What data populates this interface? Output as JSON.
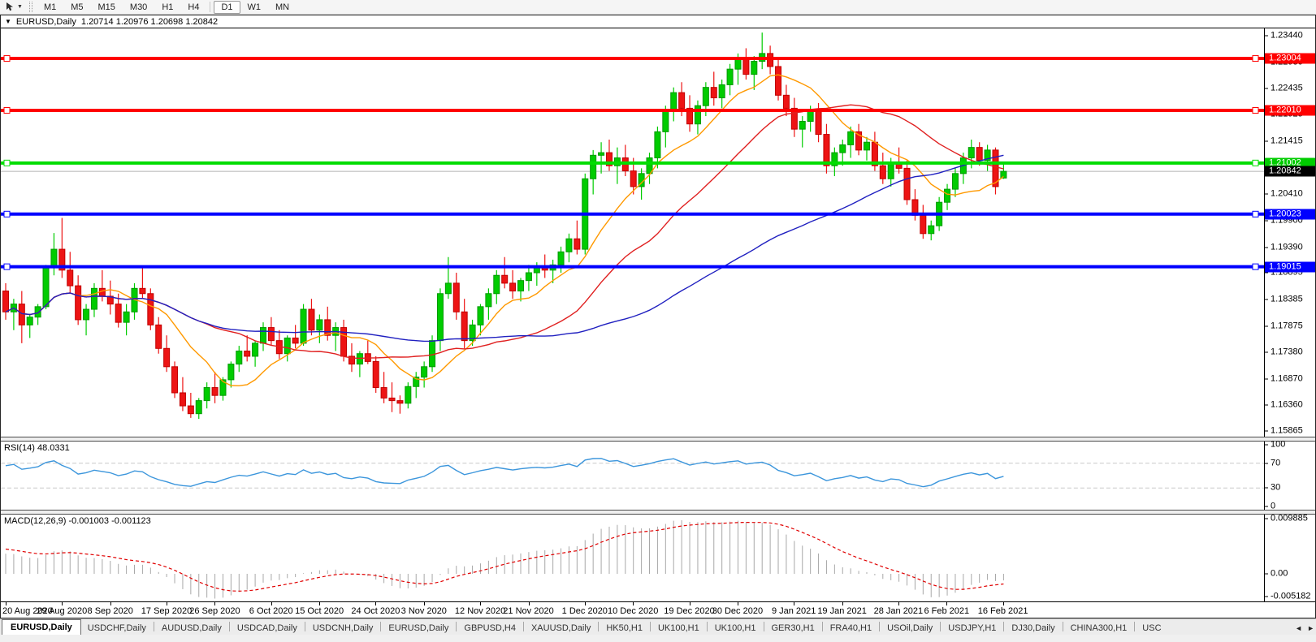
{
  "toolbar": {
    "timeframes": [
      "M1",
      "M5",
      "M15",
      "M30",
      "H1",
      "H4",
      "D1",
      "W1",
      "MN"
    ],
    "active_timeframe": "D1"
  },
  "chart": {
    "title": "EURUSD,Daily",
    "ohlc_display": "1.20714 1.20976 1.20698 1.20842"
  },
  "chart_data": {
    "type": "candlestick",
    "symbol": "EURUSD",
    "timeframe": "Daily",
    "grid": false,
    "price_axis": {
      "range_top": 1.2358,
      "range_bottom": 1.1576,
      "ticks": [
        "1.23440",
        "1.22930",
        "1.22435",
        "1.21925",
        "1.21415",
        "1.20410",
        "1.19900",
        "1.19390",
        "1.18895",
        "1.18385",
        "1.17875",
        "1.17380",
        "1.16870",
        "1.16360",
        "1.15865"
      ]
    },
    "date_ticks": {
      "labels": [
        "20 Aug 2020",
        "29 Aug 2020",
        "8 Sep 2020",
        "17 Sep 2020",
        "26 Sep 2020",
        "6 Oct 2020",
        "15 Oct 2020",
        "24 Oct 2020",
        "3 Nov 2020",
        "12 Nov 2020",
        "21 Nov 2020",
        "1 Dec 2020",
        "10 Dec 2020",
        "19 Dec 2020",
        "30 Dec 2020",
        "9 Jan 2021",
        "19 Jan 2021",
        "28 Jan 2021",
        "6 Feb 2021",
        "16 Feb 2021"
      ],
      "indices": [
        0,
        7,
        13,
        20,
        26,
        33,
        39,
        46,
        52,
        59,
        65,
        72,
        78,
        85,
        91,
        98,
        104,
        111,
        117,
        124
      ]
    },
    "candles": [
      [
        1.1855,
        1.187,
        1.18,
        1.1815
      ],
      [
        1.1815,
        1.184,
        1.178,
        1.183
      ],
      [
        1.183,
        1.1855,
        1.1755,
        1.179
      ],
      [
        1.179,
        1.181,
        1.1765,
        1.1805
      ],
      [
        1.1805,
        1.183,
        1.179,
        1.1825
      ],
      [
        1.1825,
        1.1905,
        1.182,
        1.19
      ],
      [
        1.19,
        1.1966,
        1.1885,
        1.1935
      ],
      [
        1.1935,
        1.1995,
        1.188,
        1.1895
      ],
      [
        1.1895,
        1.193,
        1.185,
        1.1865
      ],
      [
        1.1865,
        1.1885,
        1.179,
        1.18
      ],
      [
        1.18,
        1.183,
        1.177,
        1.182
      ],
      [
        1.182,
        1.187,
        1.1805,
        1.186
      ],
      [
        1.186,
        1.1895,
        1.1835,
        1.1845
      ],
      [
        1.1845,
        1.1875,
        1.181,
        1.183
      ],
      [
        1.183,
        1.185,
        1.1785,
        1.1795
      ],
      [
        1.1795,
        1.183,
        1.177,
        1.1815
      ],
      [
        1.1815,
        1.187,
        1.18,
        1.186
      ],
      [
        1.186,
        1.19,
        1.184,
        1.185
      ],
      [
        1.185,
        1.186,
        1.178,
        1.179
      ],
      [
        1.179,
        1.1805,
        1.1735,
        1.1745
      ],
      [
        1.1745,
        1.177,
        1.17,
        1.171
      ],
      [
        1.171,
        1.172,
        1.165,
        1.166
      ],
      [
        1.166,
        1.169,
        1.1625,
        1.1635
      ],
      [
        1.1635,
        1.166,
        1.1612,
        1.162
      ],
      [
        1.162,
        1.165,
        1.161,
        1.1645
      ],
      [
        1.1645,
        1.168,
        1.163,
        1.167
      ],
      [
        1.167,
        1.17,
        1.164,
        1.1655
      ],
      [
        1.1655,
        1.169,
        1.1645,
        1.1685
      ],
      [
        1.1685,
        1.172,
        1.167,
        1.1715
      ],
      [
        1.1715,
        1.175,
        1.17,
        1.174
      ],
      [
        1.174,
        1.177,
        1.172,
        1.173
      ],
      [
        1.173,
        1.176,
        1.171,
        1.1755
      ],
      [
        1.1755,
        1.1795,
        1.174,
        1.1785
      ],
      [
        1.1785,
        1.1805,
        1.175,
        1.176
      ],
      [
        1.176,
        1.178,
        1.1725,
        1.1735
      ],
      [
        1.1735,
        1.177,
        1.172,
        1.1765
      ],
      [
        1.1765,
        1.179,
        1.1745,
        1.1755
      ],
      [
        1.1755,
        1.183,
        1.175,
        1.182
      ],
      [
        1.182,
        1.184,
        1.177,
        1.178
      ],
      [
        1.178,
        1.181,
        1.1755,
        1.18
      ],
      [
        1.18,
        1.1825,
        1.176,
        1.177
      ],
      [
        1.177,
        1.1795,
        1.174,
        1.1785
      ],
      [
        1.1785,
        1.18,
        1.172,
        1.173
      ],
      [
        1.173,
        1.1755,
        1.17,
        1.1715
      ],
      [
        1.1715,
        1.174,
        1.169,
        1.1735
      ],
      [
        1.1735,
        1.176,
        1.1715,
        1.172
      ],
      [
        1.172,
        1.173,
        1.166,
        1.167
      ],
      [
        1.167,
        1.17,
        1.164,
        1.165
      ],
      [
        1.165,
        1.168,
        1.1623,
        1.1645
      ],
      [
        1.1645,
        1.1655,
        1.162,
        1.164
      ],
      [
        1.164,
        1.168,
        1.163,
        1.1672
      ],
      [
        1.1672,
        1.17,
        1.165,
        1.169
      ],
      [
        1.169,
        1.172,
        1.167,
        1.171
      ],
      [
        1.171,
        1.177,
        1.17,
        1.176
      ],
      [
        1.176,
        1.186,
        1.174,
        1.185
      ],
      [
        1.185,
        1.192,
        1.184,
        1.187
      ],
      [
        1.187,
        1.189,
        1.18,
        1.1815
      ],
      [
        1.1815,
        1.184,
        1.1745,
        1.176
      ],
      [
        1.176,
        1.18,
        1.175,
        1.179
      ],
      [
        1.179,
        1.183,
        1.177,
        1.1825
      ],
      [
        1.1825,
        1.186,
        1.18,
        1.185
      ],
      [
        1.185,
        1.1895,
        1.183,
        1.1885
      ],
      [
        1.1885,
        1.192,
        1.186,
        1.187
      ],
      [
        1.187,
        1.1895,
        1.184,
        1.1855
      ],
      [
        1.1855,
        1.188,
        1.1835,
        1.1875
      ],
      [
        1.1875,
        1.1905,
        1.1855,
        1.189
      ],
      [
        1.189,
        1.191,
        1.1865,
        1.19
      ],
      [
        1.19,
        1.1925,
        1.188,
        1.1895
      ],
      [
        1.1895,
        1.1915,
        1.187,
        1.1905
      ],
      [
        1.1905,
        1.194,
        1.189,
        1.193
      ],
      [
        1.193,
        1.1965,
        1.191,
        1.1955
      ],
      [
        1.1955,
        1.199,
        1.1925,
        1.1935
      ],
      [
        1.1935,
        1.208,
        1.1925,
        1.207
      ],
      [
        1.207,
        1.2125,
        1.204,
        1.2115
      ],
      [
        1.2115,
        1.214,
        1.208,
        1.212
      ],
      [
        1.212,
        1.2145,
        1.2085,
        1.2095
      ],
      [
        1.2095,
        1.213,
        1.206,
        1.211
      ],
      [
        1.211,
        1.2135,
        1.2075,
        1.2085
      ],
      [
        1.2085,
        1.211,
        1.204,
        1.2055
      ],
      [
        1.2055,
        1.209,
        1.203,
        1.208
      ],
      [
        1.208,
        1.212,
        1.206,
        1.211
      ],
      [
        1.211,
        1.217,
        1.209,
        1.216
      ],
      [
        1.216,
        1.221,
        1.213,
        1.22
      ],
      [
        1.22,
        1.2245,
        1.218,
        1.2235
      ],
      [
        1.2235,
        1.2255,
        1.219,
        1.2205
      ],
      [
        1.2205,
        1.223,
        1.216,
        1.2175
      ],
      [
        1.2175,
        1.222,
        1.2155,
        1.221
      ],
      [
        1.221,
        1.2255,
        1.219,
        1.2245
      ],
      [
        1.2245,
        1.2275,
        1.221,
        1.2225
      ],
      [
        1.2225,
        1.226,
        1.2205,
        1.225
      ],
      [
        1.225,
        1.229,
        1.223,
        1.228
      ],
      [
        1.228,
        1.231,
        1.225,
        1.23
      ],
      [
        1.23,
        1.232,
        1.226,
        1.227
      ],
      [
        1.227,
        1.2305,
        1.224,
        1.2295
      ],
      [
        1.2295,
        1.235,
        1.228,
        1.231
      ],
      [
        1.231,
        1.2325,
        1.227,
        1.2285
      ],
      [
        1.2285,
        1.23,
        1.222,
        1.223
      ],
      [
        1.223,
        1.225,
        1.219,
        1.2205
      ],
      [
        1.2205,
        1.2225,
        1.215,
        1.2165
      ],
      [
        1.2165,
        1.219,
        1.213,
        1.218
      ],
      [
        1.218,
        1.221,
        1.216,
        1.22
      ],
      [
        1.22,
        1.2215,
        1.214,
        1.2155
      ],
      [
        1.2155,
        1.2175,
        1.208,
        1.2095
      ],
      [
        1.2095,
        1.213,
        1.2075,
        1.212
      ],
      [
        1.212,
        1.2145,
        1.2095,
        1.2135
      ],
      [
        1.2135,
        1.217,
        1.211,
        1.216
      ],
      [
        1.216,
        1.2175,
        1.2115,
        1.2125
      ],
      [
        1.2125,
        1.215,
        1.2105,
        1.214
      ],
      [
        1.214,
        1.216,
        1.2085,
        1.2095
      ],
      [
        1.2095,
        1.212,
        1.206,
        1.207
      ],
      [
        1.207,
        1.211,
        1.2055,
        1.21
      ],
      [
        1.21,
        1.213,
        1.208,
        1.209
      ],
      [
        1.209,
        1.2105,
        1.202,
        1.203
      ],
      [
        1.203,
        1.205,
        1.199,
        1.2
      ],
      [
        1.2,
        1.202,
        1.1955,
        1.1965
      ],
      [
        1.1965,
        1.199,
        1.1952,
        1.198
      ],
      [
        1.198,
        1.2035,
        1.197,
        1.2025
      ],
      [
        1.2025,
        1.206,
        1.201,
        1.205
      ],
      [
        1.205,
        1.209,
        1.2035,
        1.208
      ],
      [
        1.208,
        1.212,
        1.206,
        1.211
      ],
      [
        1.211,
        1.2145,
        1.209,
        1.213
      ],
      [
        1.213,
        1.214,
        1.2095,
        1.2105
      ],
      [
        1.2105,
        1.2135,
        1.2085,
        1.2125
      ],
      [
        1.2125,
        1.213,
        1.204,
        1.2055
      ],
      [
        1.20714,
        1.20976,
        1.20698,
        1.20842
      ]
    ],
    "candle_colors": {
      "up": "#00CC00",
      "up_stroke": "#009900",
      "down": "#ED1414",
      "down_stroke": "#C00000"
    },
    "moving_averages": [
      {
        "name": "fast",
        "period": 10,
        "color": "#FF9900"
      },
      {
        "name": "medium",
        "period": 25,
        "color": "#E02020"
      },
      {
        "name": "slow",
        "period": 60,
        "color": "#2020C0"
      }
    ],
    "horizontal_lines": [
      {
        "price": 1.23004,
        "color": "#FF0000"
      },
      {
        "price": 1.2201,
        "color": "#FF0000"
      },
      {
        "price": 1.21002,
        "color": "#00DD00"
      },
      {
        "price": 1.20023,
        "color": "#0000FF"
      },
      {
        "price": 1.19015,
        "color": "#0000FF"
      }
    ],
    "badges": [
      {
        "text": "1.23004",
        "price": 1.23004,
        "color": "#FF0000"
      },
      {
        "text": "1.22010",
        "price": 1.2201,
        "color": "#FF0000"
      },
      {
        "text": "1.21002",
        "price": 1.21002,
        "color": "#00CC00"
      },
      {
        "text": "1.20842",
        "price": 1.20842,
        "color": "#000000"
      },
      {
        "text": "1.20023",
        "price": 1.20023,
        "color": "#0000FF"
      },
      {
        "text": "1.19015",
        "price": 1.19015,
        "color": "#0000FF"
      }
    ],
    "current_price": {
      "value": 1.20842,
      "line_color": "#B4B4B4"
    },
    "rsi": {
      "label": "RSI(14) 48.0331",
      "period": 14,
      "value": "48.0331",
      "line_color": "#3C96DC",
      "levels": [
        70,
        30
      ],
      "level_line_color": "#C9C9C9",
      "axis_labels": [
        {
          "text": "100",
          "v": 100
        },
        {
          "text": "70",
          "v": 70
        },
        {
          "text": "30",
          "v": 30
        },
        {
          "text": "0",
          "v": 0
        }
      ]
    },
    "macd": {
      "label": "MACD(12,26,9) -0.001003 -0.001123",
      "fast": 12,
      "slow": 26,
      "signal": 9,
      "value_main": "-0.001003",
      "value_signal": "-0.001123",
      "histogram_color": "#A8A8A8",
      "signal_color": "#E00000",
      "axis_max": 0.009885,
      "axis_min": -0.005182,
      "axis_labels": [
        {
          "text": "0.009885",
          "v": 0.009885
        },
        {
          "text": "0.00",
          "v": 0
        },
        {
          "text": "-0.005182",
          "v": -0.005182
        }
      ]
    }
  },
  "tabs": {
    "items": [
      {
        "label": "EURUSD,Daily",
        "active": true
      },
      {
        "label": "USDCHF,Daily",
        "active": false
      },
      {
        "label": "AUDUSD,Daily",
        "active": false
      },
      {
        "label": "USDCAD,Daily",
        "active": false
      },
      {
        "label": "USDCNH,Daily",
        "active": false
      },
      {
        "label": "EURUSD,Daily",
        "active": false
      },
      {
        "label": "GBPUSD,H4",
        "active": false
      },
      {
        "label": "XAUUSD,Daily",
        "active": false
      },
      {
        "label": "HK50,H1",
        "active": false
      },
      {
        "label": "UK100,H1",
        "active": false
      },
      {
        "label": "UK100,H1",
        "active": false
      },
      {
        "label": "GER30,H1",
        "active": false
      },
      {
        "label": "FRA40,H1",
        "active": false
      },
      {
        "label": "USOil,Daily",
        "active": false
      },
      {
        "label": "USDJPY,H1",
        "active": false
      },
      {
        "label": "DJ30,Daily",
        "active": false
      },
      {
        "label": "CHINA300,H1",
        "active": false
      },
      {
        "label": "USC",
        "active": false
      }
    ],
    "scroll_left": "◄",
    "scroll_right": "►"
  }
}
